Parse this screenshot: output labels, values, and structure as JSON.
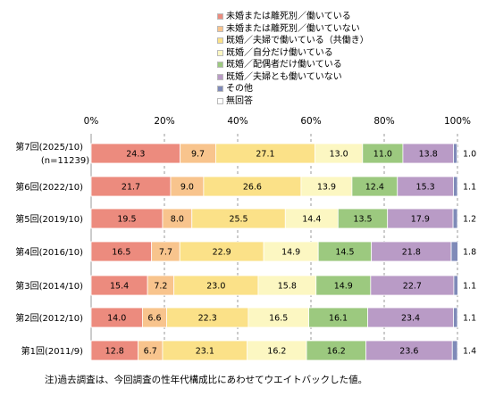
{
  "chart_data": {
    "type": "bar",
    "stacked": true,
    "orientation": "horizontal",
    "percent_scale": true,
    "xlim": [
      0,
      100
    ],
    "x_ticks": [
      "0%",
      "20%",
      "40%",
      "60%",
      "80%",
      "100%"
    ],
    "gridlines": true,
    "legend_position": "top-right",
    "categories": [
      {
        "label": "第7回(2025/10)",
        "sublabel": "(n=11239)"
      },
      {
        "label": "第6回(2022/10)",
        "sublabel": ""
      },
      {
        "label": "第5回(2019/10)",
        "sublabel": ""
      },
      {
        "label": "第4回(2016/10)",
        "sublabel": ""
      },
      {
        "label": "第3回(2014/10)",
        "sublabel": ""
      },
      {
        "label": "第2回(2012/10)",
        "sublabel": ""
      },
      {
        "label": "第1回(2011/9)",
        "sublabel": ""
      }
    ],
    "series": [
      {
        "name": "未婚または離死別／働いている",
        "color": "#ec8b7e",
        "values": [
          24.3,
          21.7,
          19.5,
          16.5,
          15.4,
          14.0,
          12.8
        ]
      },
      {
        "name": "未婚または離死別／働いていない",
        "color": "#f8c48d",
        "values": [
          9.7,
          9.0,
          8.0,
          7.7,
          7.2,
          6.6,
          6.7
        ]
      },
      {
        "name": "既婚／夫婦で働いている（共働き）",
        "color": "#fbe188",
        "values": [
          27.1,
          26.6,
          25.5,
          22.9,
          23.0,
          22.3,
          23.1
        ]
      },
      {
        "name": "既婚／自分だけ働いている",
        "color": "#fcf7c2",
        "values": [
          13.0,
          13.9,
          14.4,
          14.9,
          15.8,
          16.5,
          16.2
        ]
      },
      {
        "name": "既婚／配偶者だけ働いている",
        "color": "#9cc97f",
        "values": [
          11.0,
          12.4,
          13.5,
          14.5,
          14.9,
          16.1,
          16.2
        ]
      },
      {
        "name": "既婚／夫婦とも働いていない",
        "color": "#b99bc6",
        "values": [
          13.8,
          15.3,
          17.9,
          21.8,
          22.7,
          23.4,
          23.6
        ]
      },
      {
        "name": "その他",
        "color": "#7f8ab8",
        "values": [
          1.0,
          1.1,
          1.2,
          1.8,
          1.1,
          1.1,
          1.4
        ]
      },
      {
        "name": "無回答",
        "color": "#ffffff",
        "values": [
          0,
          0,
          0,
          0,
          0,
          0,
          0
        ]
      }
    ],
    "outside_labels": [
      "1.0",
      "1.1",
      "1.2",
      "1.8",
      "1.1",
      "1.1",
      "1.4"
    ]
  },
  "footnote": "注)過去調査は、今回調査の性年代構成比にあわせてウエイトバックした値。"
}
